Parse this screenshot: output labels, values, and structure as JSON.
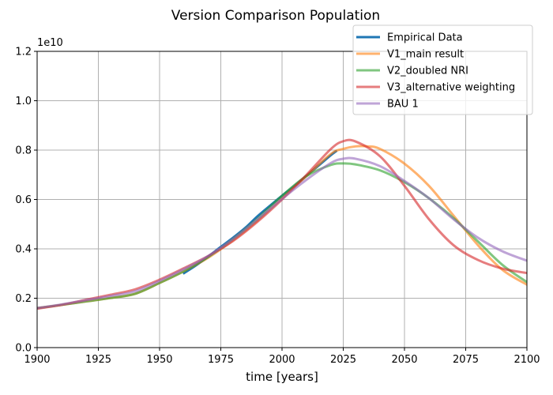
{
  "chart_data": {
    "type": "line",
    "title": "Version Comparison Population",
    "xlabel": "time [years]",
    "ylabel": "",
    "y_offset_label": "1e10",
    "xlim": [
      1900,
      2100
    ],
    "ylim": [
      0,
      1.2
    ],
    "x_ticks": [
      1900,
      1925,
      1950,
      1975,
      2000,
      2025,
      2050,
      2075,
      2100
    ],
    "y_ticks": [
      0.0,
      0.2,
      0.4,
      0.6,
      0.8,
      1.0,
      1.2
    ],
    "x_tick_labels": [
      "1900",
      "1925",
      "1950",
      "1975",
      "2000",
      "2025",
      "2050",
      "2075",
      "2100"
    ],
    "y_tick_labels": [
      "0.0",
      "0.2",
      "0.4",
      "0.6",
      "0.8",
      "1.0",
      "1.2"
    ],
    "grid": true,
    "legend_position": "top-right",
    "series": [
      {
        "name": "Empirical Data",
        "color": "#1f77b4",
        "x": [
          1960,
          1965,
          1970,
          1975,
          1980,
          1985,
          1990,
          1995,
          2000,
          2005,
          2010,
          2015,
          2020,
          2022
        ],
        "values": [
          0.302,
          0.334,
          0.37,
          0.408,
          0.445,
          0.485,
          0.532,
          0.574,
          0.615,
          0.654,
          0.696,
          0.738,
          0.78,
          0.795
        ]
      },
      {
        "name": "V1_main result",
        "color": "#ff7f0e",
        "x": [
          1900,
          1910,
          1920,
          1930,
          1940,
          1950,
          1960,
          1970,
          1980,
          1990,
          2000,
          2010,
          2020,
          2025,
          2030,
          2035,
          2040,
          2050,
          2060,
          2070,
          2080,
          2090,
          2100
        ],
        "values": [
          0.16,
          0.173,
          0.187,
          0.201,
          0.218,
          0.262,
          0.31,
          0.365,
          0.435,
          0.515,
          0.605,
          0.695,
          0.785,
          0.805,
          0.815,
          0.815,
          0.805,
          0.745,
          0.655,
          0.535,
          0.415,
          0.315,
          0.255
        ]
      },
      {
        "name": "V2_doubled NRI",
        "color": "#2ca02c",
        "x": [
          1900,
          1910,
          1920,
          1930,
          1940,
          1950,
          1960,
          1970,
          1980,
          1990,
          2000,
          2010,
          2020,
          2025,
          2030,
          2040,
          2050,
          2060,
          2070,
          2080,
          2090,
          2100
        ],
        "values": [
          0.16,
          0.173,
          0.187,
          0.201,
          0.218,
          0.262,
          0.31,
          0.368,
          0.44,
          0.522,
          0.615,
          0.695,
          0.74,
          0.746,
          0.742,
          0.718,
          0.67,
          0.605,
          0.525,
          0.43,
          0.335,
          0.265
        ]
      },
      {
        "name": "V3_alternative weighting",
        "color": "#d62728",
        "x": [
          1900,
          1910,
          1920,
          1930,
          1940,
          1950,
          1960,
          1970,
          1980,
          1990,
          2000,
          2010,
          2020,
          2025,
          2030,
          2040,
          2050,
          2060,
          2070,
          2080,
          2090,
          2100
        ],
        "values": [
          0.158,
          0.173,
          0.194,
          0.214,
          0.236,
          0.275,
          0.322,
          0.372,
          0.432,
          0.51,
          0.6,
          0.7,
          0.805,
          0.836,
          0.835,
          0.775,
          0.655,
          0.52,
          0.415,
          0.355,
          0.32,
          0.302
        ]
      },
      {
        "name": "BAU 1",
        "color": "#9467bd",
        "x": [
          1900,
          1910,
          1920,
          1930,
          1940,
          1950,
          1960,
          1970,
          1980,
          1990,
          2000,
          2010,
          2020,
          2025,
          2030,
          2040,
          2050,
          2060,
          2070,
          2080,
          2090,
          2100
        ],
        "values": [
          0.16,
          0.175,
          0.192,
          0.209,
          0.228,
          0.27,
          0.318,
          0.372,
          0.44,
          0.52,
          0.602,
          0.68,
          0.748,
          0.765,
          0.765,
          0.735,
          0.675,
          0.605,
          0.52,
          0.445,
          0.39,
          0.352
        ]
      }
    ]
  }
}
